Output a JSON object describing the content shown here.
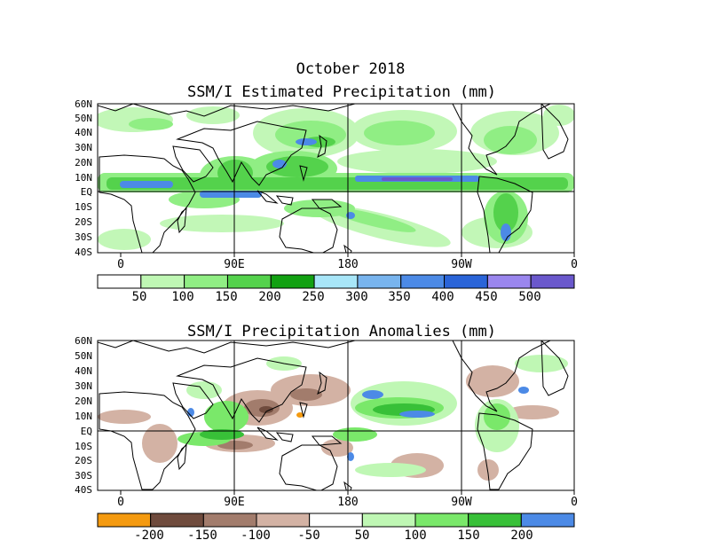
{
  "header": {
    "date": "October 2018"
  },
  "colors": {
    "ocean": "#ffffff",
    "coast": "#000000",
    "precip_scale": [
      "#ffffff",
      "#bff7b4",
      "#90ee84",
      "#54d24c",
      "#12a112",
      "#a8e6f8",
      "#78b4ee",
      "#4c8ae6",
      "#2a64d8",
      "#9a86ee",
      "#6a58cc"
    ],
    "anom_scale": [
      "#f49a10",
      "#6f4b3d",
      "#a27c6c",
      "#d3b2a4",
      "#ffffff",
      "#bff7b4",
      "#7ae86a",
      "#38c038",
      "#4c8ae6"
    ]
  },
  "top_panel": {
    "title": "SSM/I Estimated Precipitation (mm)",
    "lat_labels": [
      "60N",
      "50N",
      "40N",
      "30N",
      "20N",
      "10N",
      "EQ",
      "10S",
      "20S",
      "30S",
      "40S"
    ],
    "lon_labels": [
      "0",
      "90E",
      "180",
      "90W",
      "0"
    ],
    "colorbar_labels": [
      "50",
      "100",
      "150",
      "200",
      "250",
      "300",
      "350",
      "400",
      "450",
      "500"
    ]
  },
  "bottom_panel": {
    "title": "SSM/I Precipitation Anomalies (mm)",
    "lat_labels": [
      "60N",
      "50N",
      "40N",
      "30N",
      "20N",
      "10N",
      "EQ",
      "10S",
      "20S",
      "30S",
      "40S"
    ],
    "lon_labels": [
      "0",
      "90E",
      "180",
      "90W",
      "0"
    ],
    "colorbar_labels": [
      "-200",
      "-150",
      "-100",
      "-50",
      "50",
      "100",
      "150",
      "200"
    ]
  }
}
